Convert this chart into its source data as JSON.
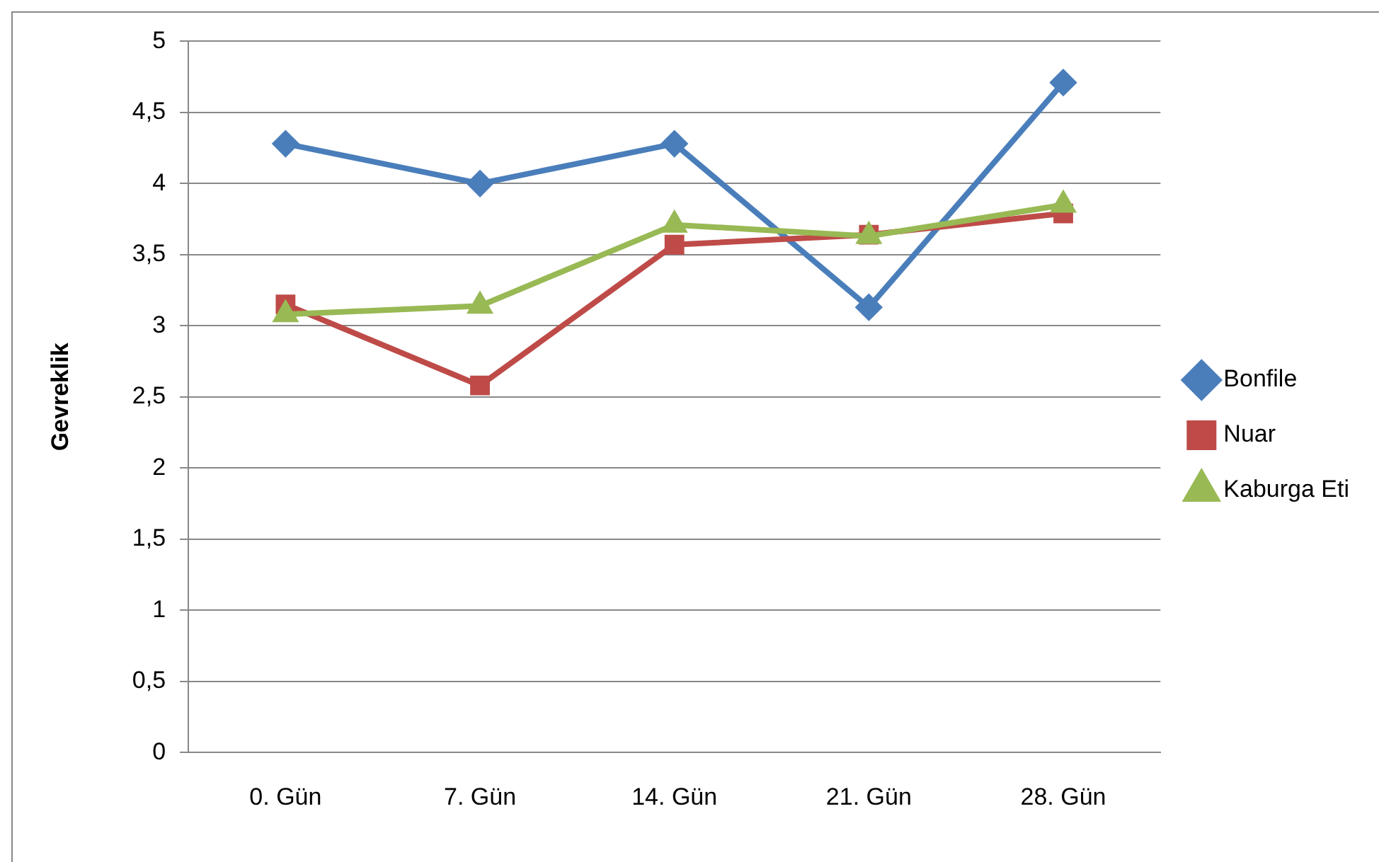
{
  "chart_data": {
    "type": "line",
    "ylabel": "Gevreklik",
    "categories": [
      "0. Gün",
      "7. Gün",
      "14. Gün",
      "21. Gün",
      "28. Gün"
    ],
    "series": [
      {
        "name": "Bonfile",
        "color": "#4a7ebb",
        "marker": "diamond",
        "values": [
          4.28,
          4.0,
          4.28,
          3.13,
          4.71
        ]
      },
      {
        "name": "Nuar",
        "color": "#be4b48",
        "marker": "square",
        "values": [
          3.15,
          2.58,
          3.57,
          3.64,
          3.79
        ]
      },
      {
        "name": "Kaburga Eti",
        "color": "#98b954",
        "marker": "triangle",
        "values": [
          3.08,
          3.14,
          3.71,
          3.63,
          3.85
        ]
      }
    ],
    "ylim": [
      0,
      5
    ],
    "yticks": [
      0,
      {
        "value": 0.5,
        "label": "0,5"
      },
      1,
      {
        "value": 1.5,
        "label": "1,5"
      },
      2,
      {
        "value": 2.5,
        "label": "2,5"
      },
      3,
      {
        "value": 3.5,
        "label": "3,5"
      },
      4,
      {
        "value": 4.5,
        "label": "4,5"
      },
      5
    ],
    "grid": "y",
    "legend": "right",
    "line_style": "solid"
  }
}
